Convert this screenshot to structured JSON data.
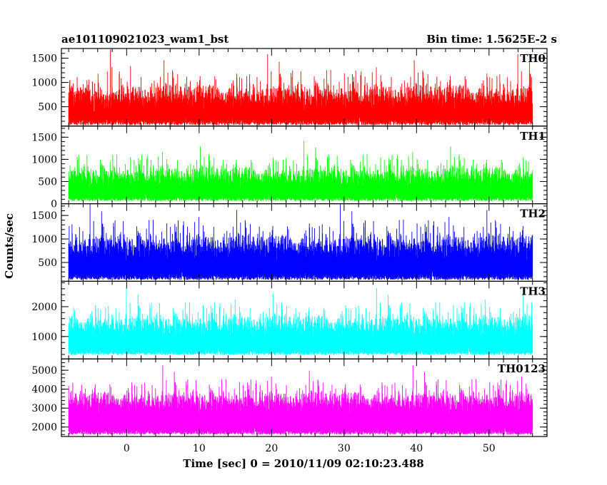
{
  "chart_data": {
    "type": "line",
    "title": "ae101109021023_wam1_bst",
    "subtitle": "Bin time: 1.5625E-2 s",
    "xlabel": "Time [sec] 0 = 2010/11/09 02:10:23.488",
    "ylabel": "Counts/sec",
    "xlim": [
      -9,
      58
    ],
    "x_ticks": [
      0,
      10,
      20,
      30,
      40,
      50
    ],
    "data_x_range": [
      -8,
      56
    ],
    "bin_time": 0.015625,
    "grid": false,
    "legend": "none",
    "panels": [
      {
        "name": "TH0",
        "color": "#ff0000",
        "ylim": [
          100,
          1700
        ],
        "y_ticks": [
          500,
          1000,
          1500
        ],
        "baseline": 700,
        "spread": 360,
        "floor": 120,
        "ceil": 1700
      },
      {
        "name": "TH1",
        "color": "#00ff00",
        "ylim": [
          0,
          1750
        ],
        "y_ticks": [
          0,
          500,
          1000,
          1500
        ],
        "baseline": 600,
        "spread": 330,
        "floor": 60,
        "ceil": 1700
      },
      {
        "name": "TH2",
        "color": "#0000ff",
        "ylim": [
          100,
          1750
        ],
        "y_ticks": [
          500,
          1000,
          1500
        ],
        "baseline": 820,
        "spread": 380,
        "floor": 130,
        "ceil": 1750
      },
      {
        "name": "TH3",
        "color": "#00ffff",
        "ylim": [
          250,
          2850
        ],
        "y_ticks": [
          1000,
          2000
        ],
        "baseline": 1350,
        "spread": 520,
        "floor": 380,
        "ceil": 2700
      },
      {
        "name": "TH0123",
        "color": "#ff00ff",
        "ylim": [
          1500,
          5600
        ],
        "y_ticks": [
          2000,
          3000,
          4000,
          5000
        ],
        "baseline": 3300,
        "spread": 800,
        "floor": 1600,
        "ceil": 5450
      }
    ]
  }
}
